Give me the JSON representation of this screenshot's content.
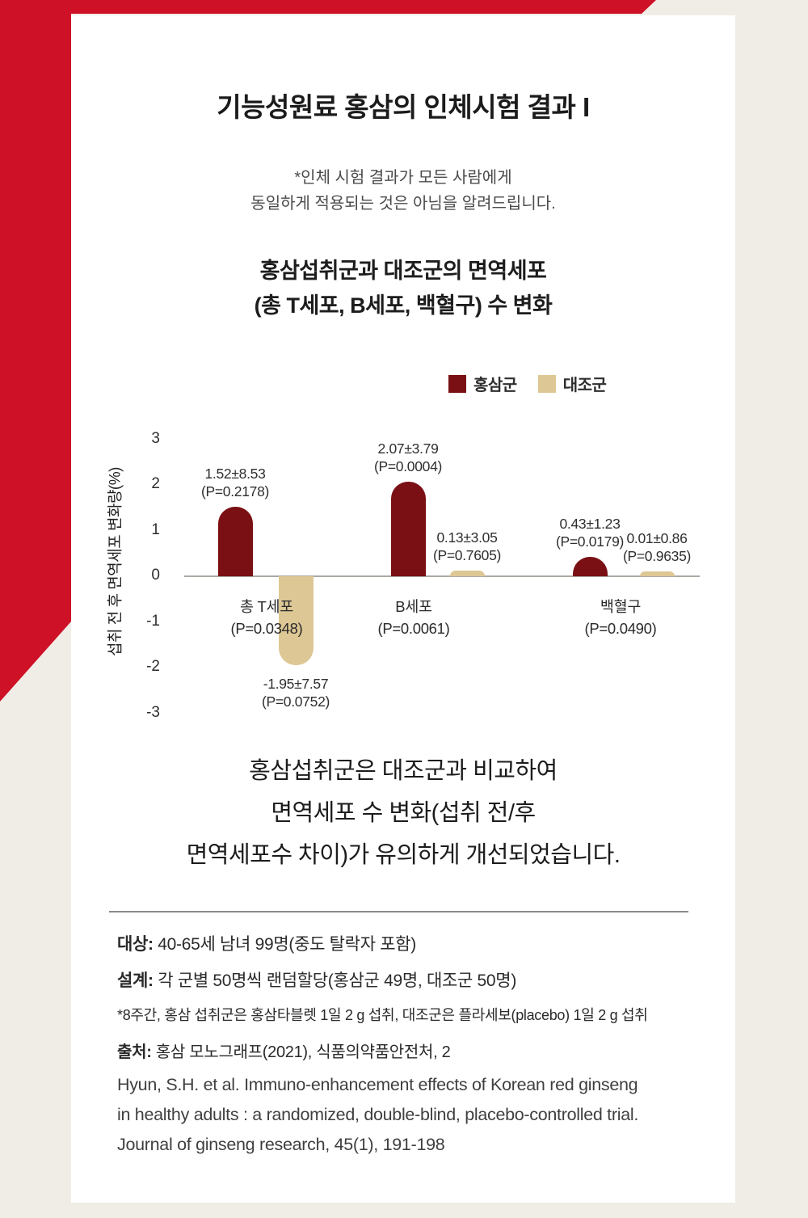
{
  "page": {
    "title": "기능성원료 홍삼의 인체시험 결과 I",
    "disclaimer_lines": [
      "*인체 시험 결과가 모든 사람에게",
      "동일하게 적용되는 것은 아님을 알려드립니다."
    ]
  },
  "chart_data": {
    "type": "bar",
    "title_lines": [
      "홍삼섭취군과 대조군의 면역세포",
      "(총 T세포, B세포, 백혈구) 수 변화"
    ],
    "ylabel": "섭취 전 후 면역세포 변화량(%)",
    "ylim": [
      -3,
      3
    ],
    "yticks": [
      3,
      2,
      1,
      0,
      -1,
      -2,
      -3
    ],
    "grid": false,
    "legend_position": "top-right",
    "categories": [
      "총 T세포",
      "B세포",
      "백혈구"
    ],
    "category_pvalues": [
      "(P=0.0348)",
      "(P=0.0061)",
      "(P=0.0490)"
    ],
    "series": [
      {
        "name": "홍삼군",
        "color": "#7A1014",
        "values": [
          1.52,
          2.07,
          0.43
        ],
        "value_labels": [
          "1.52±8.53",
          "2.07±3.79",
          "0.43±1.23"
        ],
        "p_labels": [
          "(P=0.2178)",
          "(P=0.0004)",
          "(P=0.0179)"
        ]
      },
      {
        "name": "대조군",
        "color": "#DDC794",
        "values": [
          -1.95,
          0.13,
          0.01
        ],
        "value_labels": [
          "-1.95±7.57",
          "0.13±3.05",
          "0.01±0.86"
        ],
        "p_labels": [
          "(P=0.0752)",
          "(P=0.7605)",
          "(P=0.9635)"
        ]
      }
    ]
  },
  "conclusion": {
    "lines": [
      "홍삼섭취군은 대조군과 비교하여",
      "면역세포 수 변화(섭취 전/후",
      "면역세포수 차이)가 유의하게 개선되었습니다."
    ]
  },
  "details": {
    "lines": [
      {
        "label": "대상:",
        "text": " 40-65세 남녀 99명(중도 탈락자 포함)",
        "style": "normal"
      },
      {
        "label": "설계:",
        "text": " 각 군별 50명씩 랜덤할당(홍삼군 49명, 대조군 50명)",
        "style": "normal"
      },
      {
        "label": "",
        "text": "*8주간, 홍삼 섭취군은 홍삼타블렛 1일 2 g 섭취, 대조군은 플라세보(placebo) 1일 2 g 섭취",
        "style": "small"
      },
      {
        "label": "출처:",
        "text": " 홍삼 모노그래프(2021), 식품의약품안전처, 2",
        "style": "source"
      },
      {
        "label": "",
        "text": "Hyun, S.H. et al. Immuno-enhancement effects of Korean red ginseng",
        "style": "ref"
      },
      {
        "label": "",
        "text": "in healthy adults : a randomized, double-blind, placebo-controlled trial.",
        "style": "ref"
      },
      {
        "label": "",
        "text": "Journal of ginseng research, 45(1), 191-198",
        "style": "ref"
      }
    ]
  },
  "colors": {
    "accent_red": "#CE1126",
    "bar_red": "#7A1014",
    "bar_beige": "#DDC794",
    "background": "#F0EDE7",
    "card": "#FFFFFF",
    "axis_line": "#ACA9A4"
  }
}
